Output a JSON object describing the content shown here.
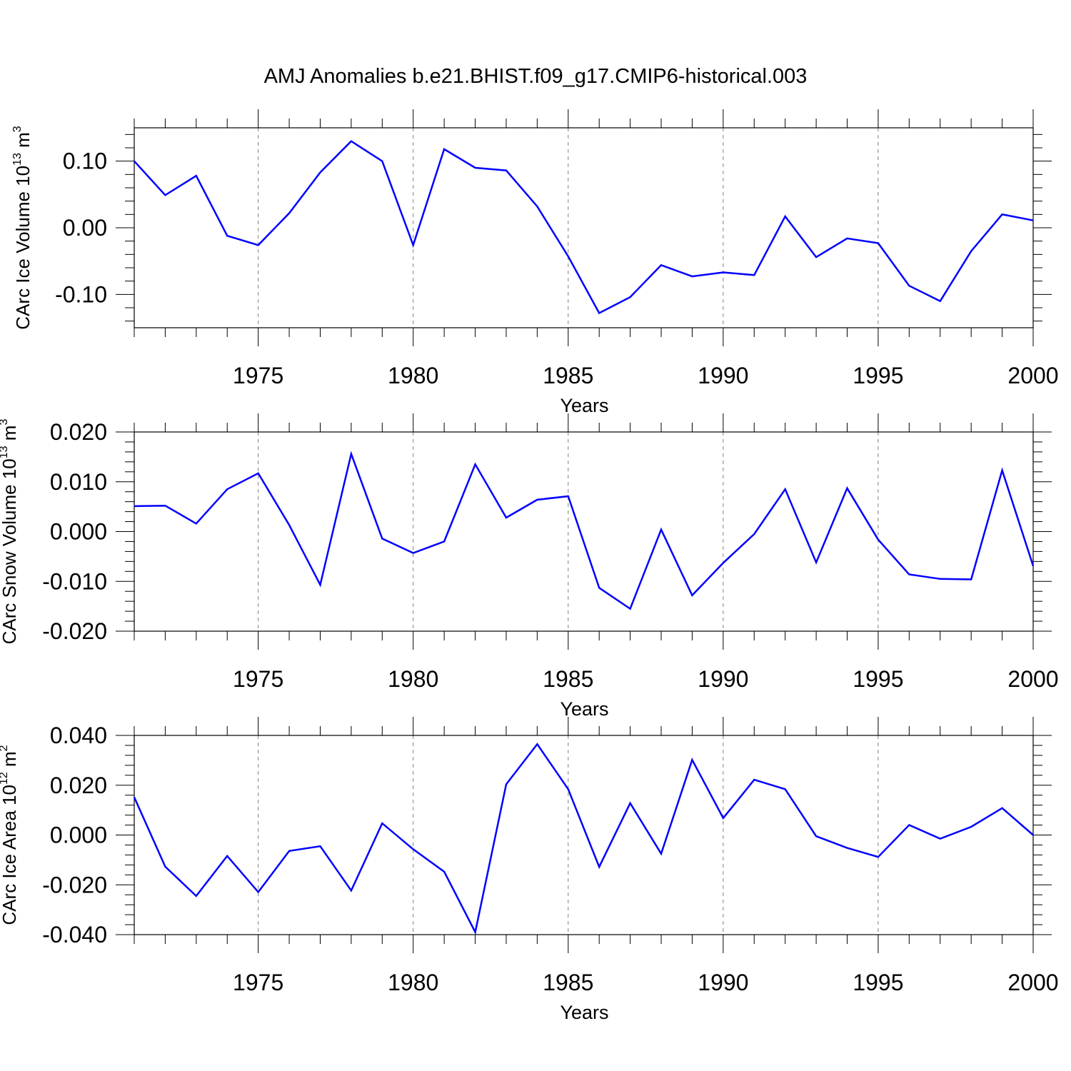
{
  "title": "AMJ Anomalies b.e21.BHIST.f09_g17.CMIP6-historical.003",
  "colors": {
    "line": "#0000ff",
    "axis": "#000000",
    "grid": "#808080",
    "background": "#ffffff"
  },
  "chart_data": [
    {
      "type": "line",
      "ylabel": {
        "text": "CArc Ice Volume 10",
        "sup": "13",
        "unit": "m",
        "unit_sup": "3"
      },
      "xlabel": "Years",
      "xlim": [
        1971,
        2000
      ],
      "ylim": [
        -0.15,
        0.15
      ],
      "yticks": [
        -0.1,
        0.0,
        0.1
      ],
      "ytick_labels": [
        "-0.10",
        "0.00",
        "0.10"
      ],
      "xticks": [
        1975,
        1980,
        1985,
        1990,
        1995,
        2000
      ],
      "xtick_labels": [
        "1975",
        "1980",
        "1985",
        "1990",
        "1995",
        "2000"
      ],
      "grid_x": [
        1975,
        1980,
        1985,
        1990,
        1995
      ],
      "series": [
        {
          "name": "CArc Ice Volume",
          "x": [
            1971,
            1972,
            1973,
            1974,
            1975,
            1976,
            1977,
            1978,
            1979,
            1980,
            1981,
            1982,
            1983,
            1984,
            1985,
            1986,
            1987,
            1988,
            1989,
            1990,
            1991,
            1992,
            1993,
            1994,
            1995,
            1996,
            1997,
            1998,
            1999,
            2000
          ],
          "values": [
            0.1,
            0.049,
            0.078,
            -0.012,
            -0.026,
            0.022,
            0.083,
            0.13,
            0.1,
            -0.026,
            0.118,
            0.09,
            0.086,
            0.032,
            -0.043,
            -0.128,
            -0.104,
            -0.056,
            -0.073,
            -0.067,
            -0.071,
            0.017,
            -0.044,
            -0.016,
            -0.023,
            -0.087,
            -0.11,
            -0.035,
            0.02,
            0.011
          ]
        }
      ]
    },
    {
      "type": "line",
      "ylabel": {
        "text": "CArc Snow Volume 10",
        "sup": "13",
        "unit": "m",
        "unit_sup": "3"
      },
      "xlabel": "Years",
      "xlim": [
        1971,
        2000
      ],
      "ylim": [
        -0.02,
        0.02
      ],
      "yticks": [
        -0.02,
        -0.01,
        0.0,
        0.01,
        0.02
      ],
      "ytick_labels": [
        "-0.020",
        "-0.010",
        "0.000",
        "0.010",
        "0.020"
      ],
      "xticks": [
        1975,
        1980,
        1985,
        1990,
        1995,
        2000
      ],
      "xtick_labels": [
        "1975",
        "1980",
        "1985",
        "1990",
        "1995",
        "2000"
      ],
      "grid_x": [
        1975,
        1980,
        1985,
        1990,
        1995
      ],
      "series": [
        {
          "name": "CArc Snow Volume",
          "x": [
            1971,
            1972,
            1973,
            1974,
            1975,
            1976,
            1977,
            1978,
            1979,
            1980,
            1981,
            1982,
            1983,
            1984,
            1985,
            1986,
            1987,
            1988,
            1989,
            1990,
            1991,
            1992,
            1993,
            1994,
            1995,
            1996,
            1997,
            1998,
            1999,
            2000
          ],
          "values": [
            0.0051,
            0.0052,
            0.0016,
            0.0085,
            0.0117,
            0.0013,
            -0.0107,
            0.0156,
            -0.0014,
            -0.0043,
            -0.002,
            0.0135,
            0.0028,
            0.0064,
            0.0071,
            -0.0113,
            -0.0155,
            0.0004,
            -0.0128,
            -0.0063,
            -0.0005,
            0.0085,
            -0.0062,
            0.0087,
            -0.0016,
            -0.0086,
            -0.0095,
            -0.0096,
            0.0123,
            -0.0069
          ]
        }
      ]
    },
    {
      "type": "line",
      "ylabel": {
        "text": "CArc Ice Area 10",
        "sup": "12",
        "unit": "m",
        "unit_sup": "2"
      },
      "xlabel": "Years",
      "xlim": [
        1971,
        2000
      ],
      "ylim": [
        -0.04,
        0.04
      ],
      "yticks": [
        -0.04,
        -0.02,
        0.0,
        0.02,
        0.04
      ],
      "ytick_labels": [
        "-0.040",
        "-0.020",
        "0.000",
        "0.020",
        "0.040"
      ],
      "xticks": [
        1975,
        1980,
        1985,
        1990,
        1995,
        2000
      ],
      "xtick_labels": [
        "1975",
        "1980",
        "1985",
        "1990",
        "1995",
        "2000"
      ],
      "grid_x": [
        1975,
        1980,
        1985,
        1990,
        1995
      ],
      "series": [
        {
          "name": "CArc Ice Area",
          "x": [
            1971,
            1972,
            1973,
            1974,
            1975,
            1976,
            1977,
            1978,
            1979,
            1980,
            1981,
            1982,
            1983,
            1984,
            1985,
            1986,
            1987,
            1988,
            1989,
            1990,
            1991,
            1992,
            1993,
            1994,
            1995,
            1996,
            1997,
            1998,
            1999,
            2000
          ],
          "values": [
            0.0152,
            -0.0127,
            -0.0245,
            -0.0084,
            -0.0229,
            -0.0064,
            -0.0045,
            -0.0223,
            0.0047,
            -0.0057,
            -0.0147,
            -0.039,
            0.0204,
            0.0365,
            0.0184,
            -0.0128,
            0.0128,
            -0.0075,
            0.0302,
            0.0068,
            0.0222,
            0.0184,
            -0.0005,
            -0.0052,
            -0.0088,
            0.004,
            -0.0015,
            0.0033,
            0.0108,
            0.0
          ]
        }
      ]
    }
  ]
}
